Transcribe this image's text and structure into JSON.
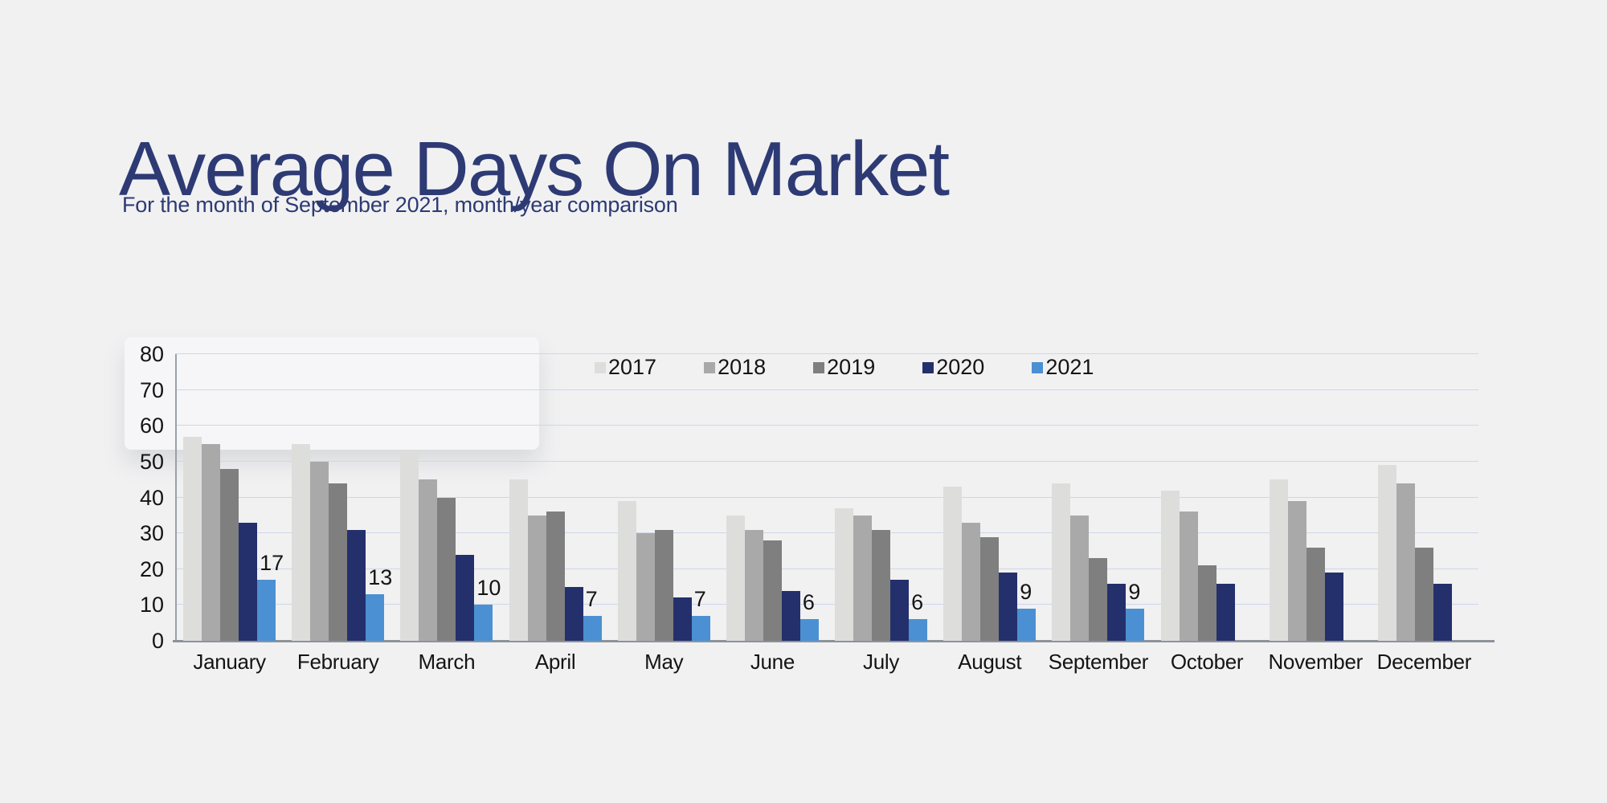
{
  "page": {
    "title": "Average Days On Market",
    "subtitle": "For the month of September 2021, month/year comparison"
  },
  "colors": {
    "background": "#f1f1f2",
    "heading_text": "#2d3a74",
    "gridline": "#cdd7e9",
    "axis_line": "#9aa0a8",
    "baseline": "#8e939a",
    "tick_text": "#141414"
  },
  "chart_data": {
    "type": "bar",
    "title": "Average Days On Market",
    "subtitle": "For the month of September 2021, month/year comparison",
    "categories": [
      "January",
      "February",
      "March",
      "April",
      "May",
      "June",
      "July",
      "August",
      "September",
      "October",
      "November",
      "December"
    ],
    "series": [
      {
        "name": "2017",
        "color": "#dddddc",
        "values": [
          57,
          55,
          53,
          45,
          39,
          35,
          37,
          43,
          44,
          42,
          45,
          49
        ],
        "data_labels": false
      },
      {
        "name": "2018",
        "color": "#a9a9a9",
        "values": [
          55,
          50,
          45,
          35,
          30,
          31,
          35,
          33,
          35,
          36,
          39,
          44
        ],
        "data_labels": false
      },
      {
        "name": "2019",
        "color": "#7f7f7f",
        "values": [
          48,
          44,
          40,
          36,
          31,
          28,
          31,
          29,
          23,
          21,
          26,
          26
        ],
        "data_labels": false
      },
      {
        "name": "2020",
        "color": "#24306b",
        "values": [
          33,
          31,
          24,
          15,
          12,
          14,
          17,
          19,
          16,
          16,
          19,
          16
        ],
        "data_labels": false
      },
      {
        "name": "2021",
        "color": "#4b90d2",
        "values": [
          17,
          13,
          10,
          7,
          7,
          6,
          6,
          9,
          9,
          null,
          null,
          null
        ],
        "data_labels": true
      }
    ],
    "xlabel": "",
    "ylabel": "",
    "ylim": [
      0,
      80
    ],
    "yticks": [
      0,
      10,
      20,
      30,
      40,
      50,
      60,
      70,
      80
    ],
    "grid": true,
    "legend_position": "top-center"
  }
}
